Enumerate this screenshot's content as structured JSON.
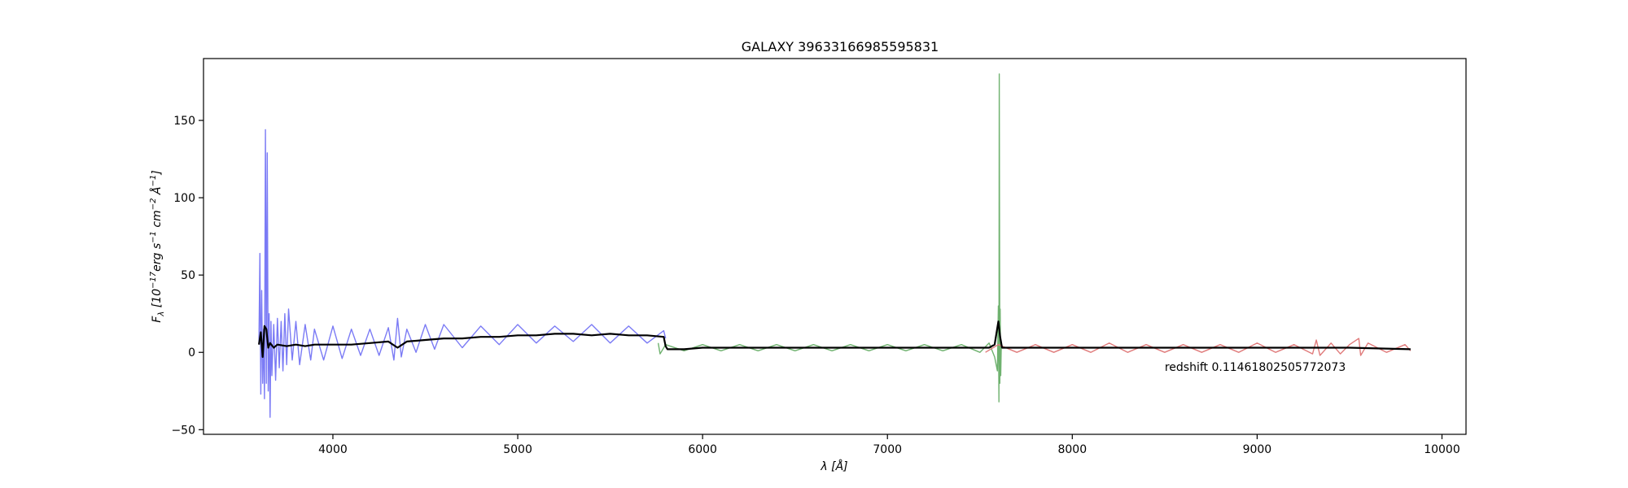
{
  "chart_data": {
    "type": "line",
    "title": "GALAXY 39633166985595831",
    "xlabel": "λ [Å]",
    "ylabel": "F_λ [10^-17 erg s^-1 cm^-2 Å^-1]",
    "ylabel_parts": {
      "pre": "F",
      "sub": "λ",
      "open": " [10",
      "exp1": "−17",
      "unit1": "erg s",
      "exp2": "−1",
      "unit2": " cm",
      "exp3": "−2",
      "unit3": " Å",
      "exp4": "−1",
      "close": "]"
    },
    "xlim": [
      3300,
      10130
    ],
    "ylim": [
      -53,
      190
    ],
    "xticks": [
      4000,
      5000,
      6000,
      7000,
      8000,
      9000,
      10000
    ],
    "yticks": [
      -50,
      0,
      50,
      100,
      150
    ],
    "grid": false,
    "annotation": "redshift 0.11461802505772073",
    "annotation_pos": {
      "x": 8500,
      "y": -12
    },
    "series": [
      {
        "color": "#7b7bf5",
        "range": [
          3600,
          5800
        ],
        "points": [
          [
            3600,
            6
          ],
          [
            3605,
            64
          ],
          [
            3610,
            -27
          ],
          [
            3615,
            40
          ],
          [
            3620,
            -20
          ],
          [
            3625,
            15
          ],
          [
            3630,
            -30
          ],
          [
            3635,
            144
          ],
          [
            3640,
            -20
          ],
          [
            3645,
            129
          ],
          [
            3650,
            -25
          ],
          [
            3655,
            25
          ],
          [
            3660,
            -42
          ],
          [
            3665,
            20
          ],
          [
            3670,
            -15
          ],
          [
            3680,
            18
          ],
          [
            3690,
            -18
          ],
          [
            3700,
            22
          ],
          [
            3710,
            -10
          ],
          [
            3720,
            20
          ],
          [
            3730,
            -12
          ],
          [
            3740,
            25
          ],
          [
            3750,
            -8
          ],
          [
            3760,
            28
          ],
          [
            3780,
            -5
          ],
          [
            3800,
            20
          ],
          [
            3820,
            -8
          ],
          [
            3850,
            18
          ],
          [
            3880,
            -5
          ],
          [
            3900,
            15
          ],
          [
            3950,
            -5
          ],
          [
            4000,
            17
          ],
          [
            4050,
            -4
          ],
          [
            4100,
            15
          ],
          [
            4150,
            -2
          ],
          [
            4200,
            15
          ],
          [
            4250,
            -2
          ],
          [
            4300,
            16
          ],
          [
            4330,
            -5
          ],
          [
            4350,
            22
          ],
          [
            4370,
            -3
          ],
          [
            4400,
            15
          ],
          [
            4450,
            0
          ],
          [
            4500,
            18
          ],
          [
            4550,
            2
          ],
          [
            4600,
            18
          ],
          [
            4700,
            3
          ],
          [
            4800,
            17
          ],
          [
            4900,
            5
          ],
          [
            5000,
            18
          ],
          [
            5100,
            6
          ],
          [
            5200,
            17
          ],
          [
            5300,
            7
          ],
          [
            5400,
            18
          ],
          [
            5500,
            6
          ],
          [
            5600,
            17
          ],
          [
            5700,
            6
          ],
          [
            5790,
            14
          ],
          [
            5800,
            9
          ]
        ]
      },
      {
        "color": "#6fb26f",
        "range": [
          5760,
          7620
        ],
        "points": [
          [
            5760,
            6
          ],
          [
            5770,
            -1
          ],
          [
            5800,
            5
          ],
          [
            5900,
            1
          ],
          [
            6000,
            5
          ],
          [
            6100,
            1
          ],
          [
            6200,
            5
          ],
          [
            6300,
            1
          ],
          [
            6400,
            5
          ],
          [
            6500,
            1
          ],
          [
            6600,
            5
          ],
          [
            6700,
            1
          ],
          [
            6800,
            5
          ],
          [
            6900,
            1
          ],
          [
            7000,
            5
          ],
          [
            7100,
            1
          ],
          [
            7200,
            5
          ],
          [
            7300,
            1
          ],
          [
            7400,
            5
          ],
          [
            7500,
            0
          ],
          [
            7550,
            6
          ],
          [
            7580,
            -3
          ],
          [
            7595,
            -12
          ],
          [
            7600,
            30
          ],
          [
            7603,
            -32
          ],
          [
            7605,
            180
          ],
          [
            7608,
            -20
          ],
          [
            7610,
            28
          ],
          [
            7613,
            -15
          ],
          [
            7616,
            5
          ],
          [
            7620,
            3
          ]
        ]
      },
      {
        "color": "#e07b7b",
        "range": [
          7530,
          9830
        ],
        "points": [
          [
            7530,
            0
          ],
          [
            7600,
            5
          ],
          [
            7700,
            0
          ],
          [
            7800,
            5
          ],
          [
            7900,
            0
          ],
          [
            8000,
            5
          ],
          [
            8100,
            0
          ],
          [
            8200,
            6
          ],
          [
            8300,
            0
          ],
          [
            8400,
            5
          ],
          [
            8500,
            0
          ],
          [
            8600,
            5
          ],
          [
            8700,
            0
          ],
          [
            8800,
            5
          ],
          [
            8900,
            0
          ],
          [
            9000,
            6
          ],
          [
            9100,
            0
          ],
          [
            9200,
            5
          ],
          [
            9300,
            -1
          ],
          [
            9320,
            8
          ],
          [
            9340,
            -2
          ],
          [
            9400,
            6
          ],
          [
            9450,
            -1
          ],
          [
            9500,
            5
          ],
          [
            9550,
            9
          ],
          [
            9560,
            -2
          ],
          [
            9600,
            6
          ],
          [
            9700,
            0
          ],
          [
            9800,
            5
          ],
          [
            9830,
            1
          ]
        ]
      },
      {
        "color": "#000000",
        "range": [
          3600,
          9830
        ],
        "points": [
          [
            3600,
            5
          ],
          [
            3610,
            13
          ],
          [
            3620,
            -3
          ],
          [
            3630,
            17
          ],
          [
            3640,
            15
          ],
          [
            3650,
            3
          ],
          [
            3660,
            6
          ],
          [
            3680,
            3
          ],
          [
            3700,
            5
          ],
          [
            3750,
            4
          ],
          [
            3800,
            5
          ],
          [
            3850,
            4
          ],
          [
            3900,
            5
          ],
          [
            4000,
            5
          ],
          [
            4100,
            5
          ],
          [
            4200,
            6
          ],
          [
            4300,
            7
          ],
          [
            4350,
            3
          ],
          [
            4400,
            7
          ],
          [
            4500,
            8
          ],
          [
            4600,
            9
          ],
          [
            4700,
            9
          ],
          [
            4800,
            10
          ],
          [
            4900,
            10
          ],
          [
            5000,
            11
          ],
          [
            5100,
            11
          ],
          [
            5200,
            12
          ],
          [
            5300,
            12
          ],
          [
            5400,
            11
          ],
          [
            5500,
            12
          ],
          [
            5600,
            11
          ],
          [
            5700,
            11
          ],
          [
            5790,
            10
          ],
          [
            5800,
            4
          ],
          [
            5810,
            2
          ],
          [
            5900,
            2
          ],
          [
            6000,
            3
          ],
          [
            6200,
            3
          ],
          [
            6400,
            3
          ],
          [
            6600,
            3
          ],
          [
            6800,
            3
          ],
          [
            7000,
            3
          ],
          [
            7200,
            3
          ],
          [
            7400,
            3
          ],
          [
            7550,
            3
          ],
          [
            7580,
            5
          ],
          [
            7600,
            20
          ],
          [
            7610,
            10
          ],
          [
            7620,
            3
          ],
          [
            7700,
            3
          ],
          [
            8000,
            3
          ],
          [
            8500,
            3
          ],
          [
            9000,
            3
          ],
          [
            9500,
            3
          ],
          [
            9830,
            2
          ]
        ]
      }
    ]
  }
}
